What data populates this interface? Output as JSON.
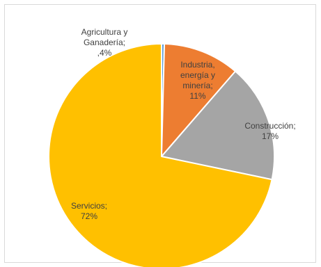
{
  "chart_data": {
    "type": "pie",
    "title": "",
    "slices": [
      {
        "label_lines": [
          "Agricultura y",
          "Ganadería;",
          ",4%"
        ],
        "value": 0.4,
        "color": "#5b9bd5"
      },
      {
        "label_lines": [
          "Industria,",
          "energía y",
          "minería;",
          "11%"
        ],
        "value": 11,
        "color": "#ed7d31"
      },
      {
        "label_lines": [
          "Construcción;",
          "17%"
        ],
        "value": 17,
        "color": "#a5a5a5"
      },
      {
        "label_lines": [
          "Servicios;",
          "72%"
        ],
        "value": 72,
        "color": "#ffc000"
      }
    ]
  }
}
